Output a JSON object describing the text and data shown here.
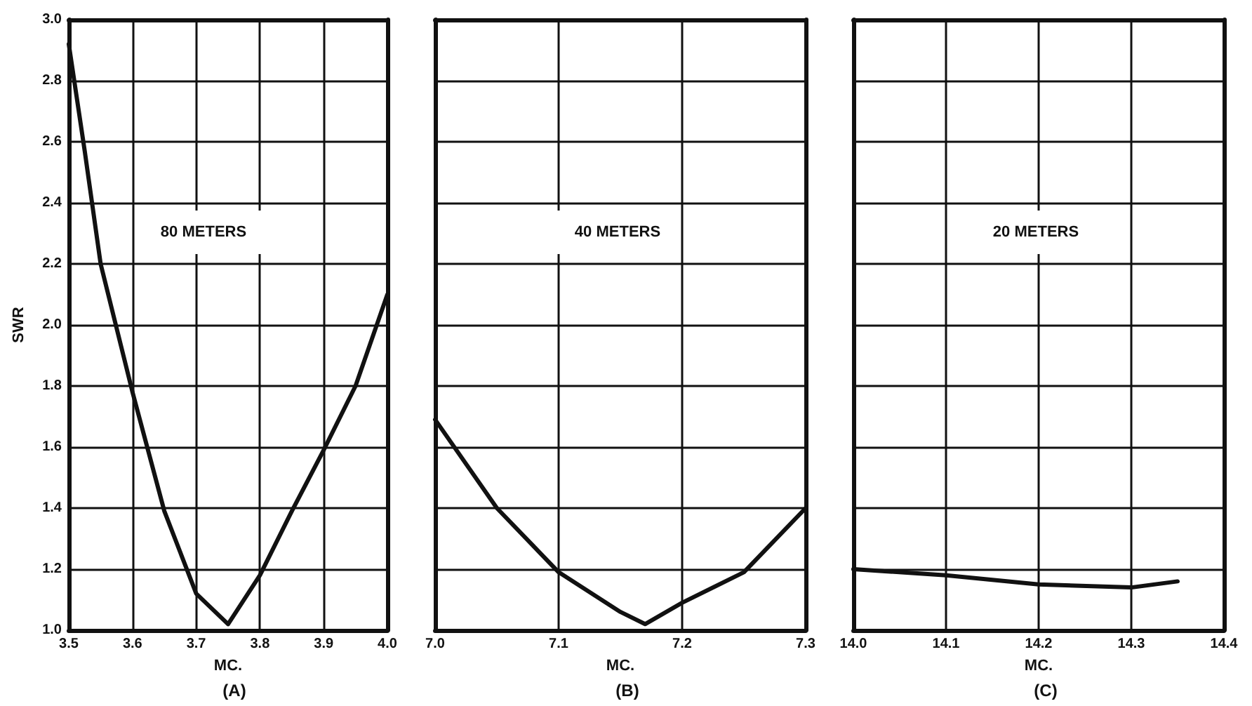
{
  "chart_data": [
    {
      "type": "line",
      "title": "(A)",
      "xlabel": "MC.",
      "ylabel": "SWR",
      "annotations": [
        "80 METERS"
      ],
      "color": "#111111",
      "x": [
        3.5,
        3.525,
        3.55,
        3.6,
        3.65,
        3.7,
        3.75,
        3.8,
        3.85,
        3.9,
        3.95,
        4.0
      ],
      "values": [
        2.92,
        2.57,
        2.2,
        1.78,
        1.39,
        1.12,
        1.02,
        1.18,
        1.39,
        1.59,
        1.8,
        2.1
      ],
      "xlim": [
        3.5,
        4.0
      ],
      "xticks": [
        3.5,
        3.6,
        3.7,
        3.8,
        3.9,
        {
          "value": 4.0,
          "label": "4.0"
        }
      ],
      "ylim": [
        1.0,
        3.0
      ],
      "yticks": [
        {
          "value": 1.0,
          "label": "1.0"
        },
        1.2,
        1.4,
        1.6,
        1.8,
        {
          "value": 2.0,
          "label": "2.0"
        },
        2.2,
        2.4,
        2.6,
        2.8,
        {
          "value": 3.0,
          "label": "3.0"
        }
      ],
      "grid": true,
      "marker": "none",
      "line_style": "solid"
    },
    {
      "type": "line",
      "title": "(B)",
      "xlabel": "MC.",
      "annotations": [
        "40 METERS"
      ],
      "color": "#111111",
      "x": [
        7.0,
        7.05,
        7.1,
        7.15,
        7.17,
        7.2,
        7.25,
        7.3
      ],
      "values": [
        1.69,
        1.4,
        1.19,
        1.06,
        1.02,
        1.09,
        1.19,
        1.4
      ],
      "xlim": [
        7.0,
        7.3
      ],
      "xticks": [
        {
          "value": 7.0,
          "label": "7.0"
        },
        7.1,
        7.2,
        7.3
      ],
      "ylim": [
        1.0,
        3.0
      ],
      "yticks": [
        1.0,
        1.2,
        1.4,
        1.6,
        1.8,
        2.0,
        2.2,
        2.4,
        2.6,
        2.8,
        3.0
      ],
      "tick_labels": "x",
      "grid": true,
      "marker": "none",
      "line_style": "solid"
    },
    {
      "type": "line",
      "title": "(C)",
      "xlabel": "MC.",
      "annotations": [
        "20 METERS"
      ],
      "color": "#111111",
      "x": [
        14.0,
        14.1,
        14.2,
        14.3,
        14.35
      ],
      "values": [
        1.2,
        1.18,
        1.15,
        1.14,
        1.16
      ],
      "xlim": [
        14.0,
        14.4
      ],
      "xticks": [
        {
          "value": 14.0,
          "label": "14.0"
        },
        14.1,
        14.2,
        14.3,
        14.4
      ],
      "ylim": [
        1.0,
        3.0
      ],
      "yticks": [
        1.0,
        1.2,
        1.4,
        1.6,
        1.8,
        2.0,
        2.2,
        2.4,
        2.6,
        2.8,
        3.0
      ],
      "tick_labels": "x",
      "grid": true,
      "marker": "none",
      "line_style": "solid"
    }
  ]
}
